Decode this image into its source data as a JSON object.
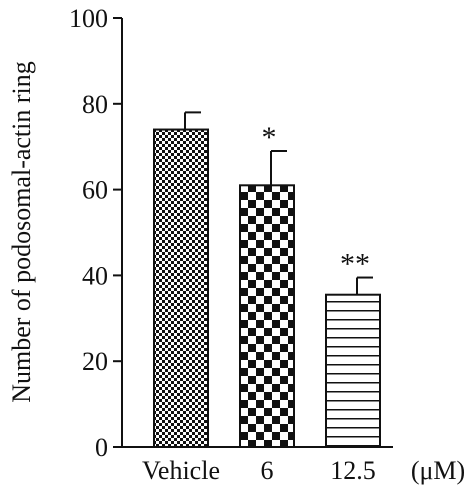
{
  "chart_data": {
    "type": "bar",
    "categories": [
      "Vehicle",
      "6",
      "12.5"
    ],
    "x_unit_label": "(μM)",
    "values": [
      74,
      61,
      35.5
    ],
    "errors": [
      4,
      8,
      4
    ],
    "significance": [
      "",
      "*",
      "**"
    ],
    "ylabel": "Number of podosomal-actin ring",
    "xlabel": "",
    "ylim": [
      0,
      100
    ],
    "yticks": [
      0,
      20,
      40,
      60,
      80,
      100
    ],
    "title": "",
    "grid": false,
    "legend": "none",
    "bar_patterns": [
      "fine-checker",
      "coarse-checker",
      "horizontal-lines"
    ]
  }
}
